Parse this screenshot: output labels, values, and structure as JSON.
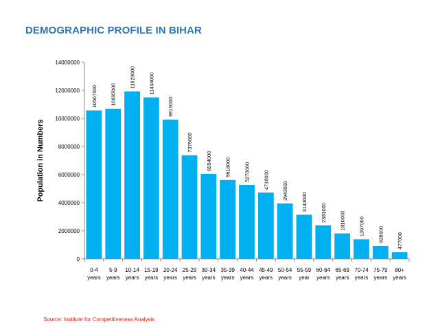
{
  "title": "DEMOGRAPHIC PROFILE IN BIHAR",
  "source": "Source: Institute for Competitiveness Analysis",
  "chart_data": {
    "type": "bar",
    "ylabel": "Population in Numbers",
    "xlabel": "",
    "ylim": [
      0,
      14000000
    ],
    "yticks": [
      0,
      2000000,
      4000000,
      6000000,
      8000000,
      10000000,
      12000000,
      14000000
    ],
    "grid": false,
    "legend": "none",
    "bar_color": "#00b0f0",
    "categories": [
      [
        "0-4",
        "years"
      ],
      [
        "5-9",
        "years"
      ],
      [
        "10-14",
        "years"
      ],
      [
        "15-19",
        "years"
      ],
      [
        "20-24",
        "years"
      ],
      [
        "25-29",
        "years"
      ],
      [
        "30-34",
        "years"
      ],
      [
        "35-39",
        "years"
      ],
      [
        "40-44",
        "years"
      ],
      [
        "45-49",
        "years"
      ],
      [
        "50-54",
        "years"
      ],
      [
        "55-59",
        "year"
      ],
      [
        "60-64",
        "years"
      ],
      [
        "65-69",
        "years"
      ],
      [
        "70-74",
        "years"
      ],
      [
        "75-79",
        "years"
      ],
      [
        "80+",
        "years"
      ]
    ],
    "values": [
      10567000,
      10695000,
      11929000,
      11494000,
      9919000,
      7379000,
      6054000,
      5618000,
      5270000,
      4718000,
      3943000,
      3143000,
      2381000,
      1810000,
      1397000,
      928000,
      477000
    ]
  }
}
